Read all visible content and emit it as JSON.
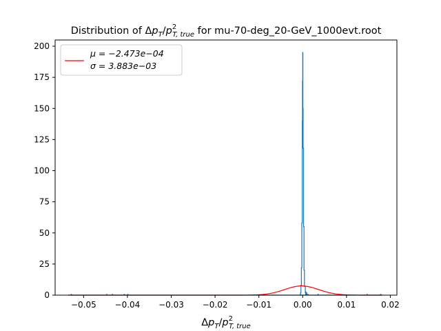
{
  "chart_data": {
    "type": "histogram",
    "title_prefix": "Distribution of ",
    "title_suffix": " for mu-70-deg_20-GeV_1000evt.root",
    "xlabel": "Δp_T/p²_T,true",
    "ylabel": "",
    "xlim": [
      -0.0565,
      0.0215
    ],
    "ylim": [
      0,
      205
    ],
    "xticks": [
      -0.05,
      -0.04,
      -0.03,
      -0.02,
      -0.01,
      0.0,
      0.01,
      0.02
    ],
    "xtick_labels": [
      "−0.05",
      "−0.04",
      "−0.03",
      "−0.02",
      "−0.01",
      "0.00",
      "0.01",
      "0.02"
    ],
    "yticks": [
      0,
      25,
      50,
      75,
      100,
      125,
      150,
      175,
      200
    ],
    "ytick_labels": [
      "0",
      "25",
      "50",
      "75",
      "100",
      "125",
      "150",
      "175",
      "200"
    ],
    "grid": false,
    "legend_position": "top-left",
    "histogram": {
      "color": "#1f77b4",
      "peak": [
        [
          -0.0008,
          0
        ],
        [
          -0.0005,
          2
        ],
        [
          -0.0004,
          8
        ],
        [
          -0.0003,
          22
        ],
        [
          -0.0002,
          58
        ],
        [
          -0.0001,
          140
        ],
        [
          -5e-05,
          172
        ],
        [
          0.0,
          195
        ],
        [
          5e-05,
          150
        ],
        [
          0.0001,
          118
        ],
        [
          0.0002,
          55
        ],
        [
          0.0003,
          20
        ],
        [
          0.0004,
          7
        ],
        [
          0.0006,
          2
        ],
        [
          0.0009,
          0
        ]
      ],
      "outliers": [
        [
          -0.0528,
          1
        ],
        [
          -0.0447,
          1
        ],
        [
          -0.0434,
          1
        ],
        [
          -0.0407,
          1
        ],
        [
          -0.0399,
          1
        ],
        [
          0.0007,
          3
        ],
        [
          0.0009,
          2
        ],
        [
          0.0012,
          1
        ],
        [
          0.0035,
          1
        ],
        [
          0.0147,
          1
        ],
        [
          0.0178,
          1
        ]
      ]
    },
    "fit": {
      "name": "gaussian",
      "color": "#ff0000",
      "mu": -0.0002473,
      "sigma": 0.003883,
      "amplitude": 7.4,
      "legend_mu_label": "μ = −2.473e−04",
      "legend_sigma_label": "σ = 3.883e−03"
    }
  }
}
